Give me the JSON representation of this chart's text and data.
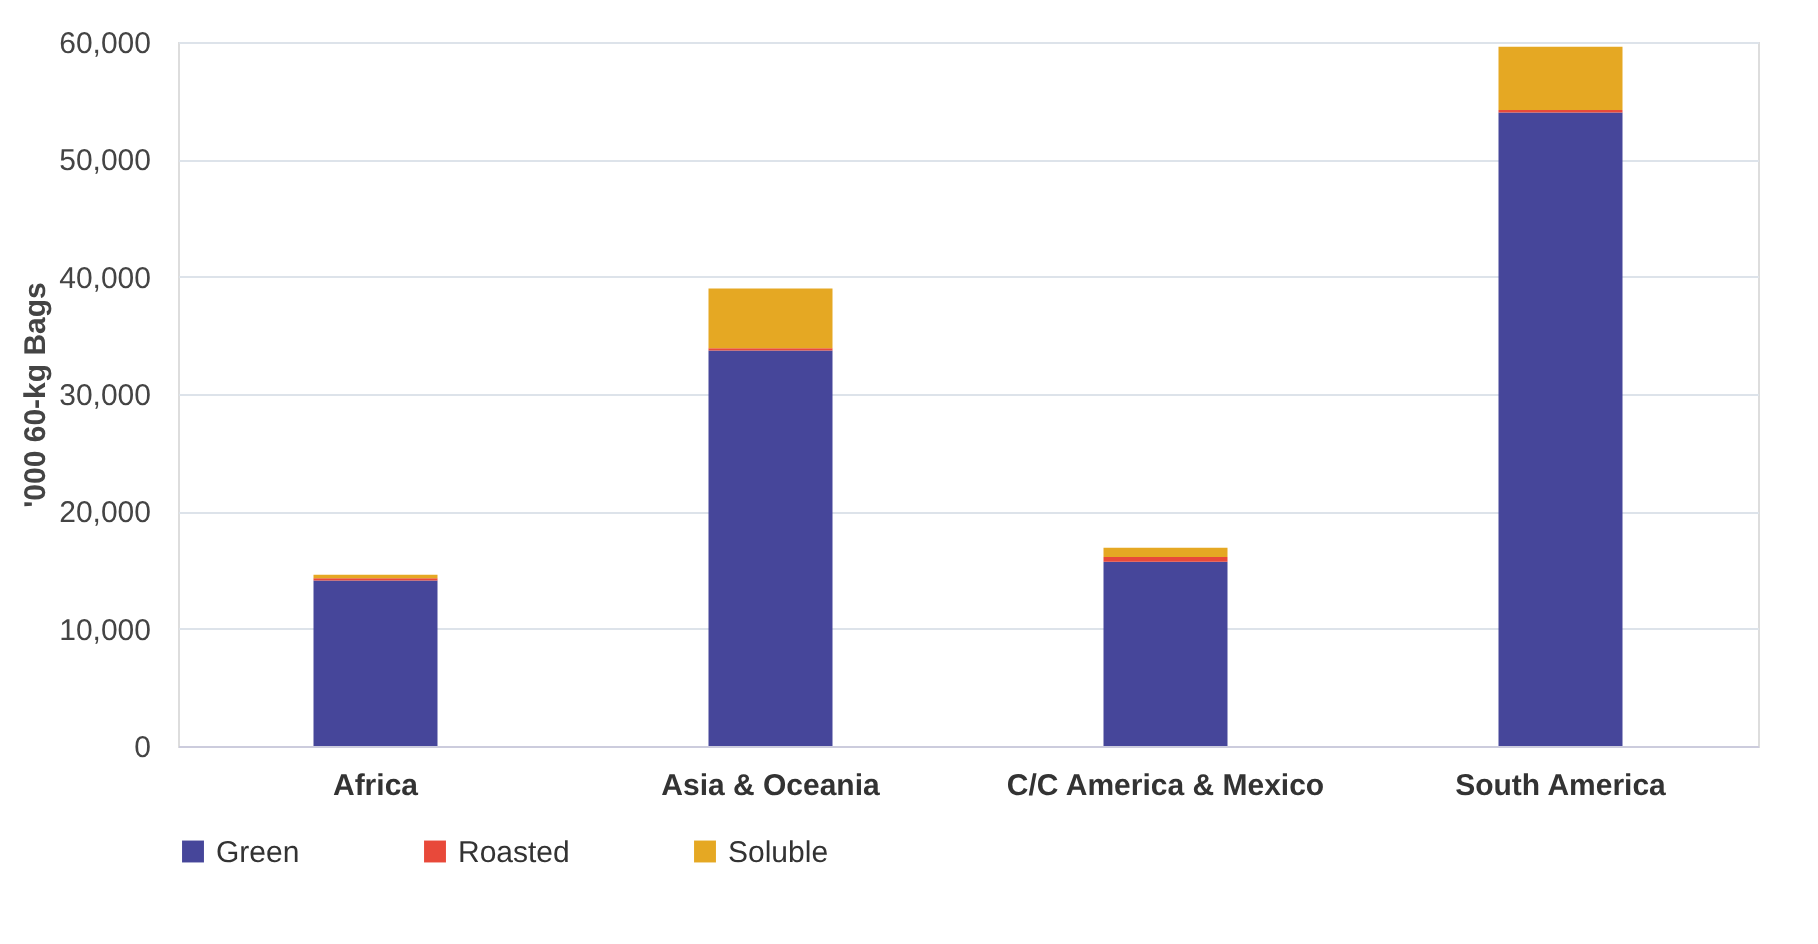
{
  "chart_data": {
    "type": "bar",
    "stacked": true,
    "ylabel": "'000 60-kg Bags",
    "categories": [
      "Africa",
      "Asia & Oceania",
      "C/C America & Mexico",
      "South America"
    ],
    "series": [
      {
        "name": "Green",
        "color": "#46469a",
        "values": [
          14100,
          33700,
          15700,
          54000
        ]
      },
      {
        "name": "Roasted",
        "color": "#e8493a",
        "values": [
          200,
          200,
          400,
          200
        ]
      },
      {
        "name": "Soluble",
        "color": "#e5a823",
        "values": [
          300,
          5100,
          800,
          5400
        ]
      }
    ],
    "ylim": [
      0,
      60000
    ],
    "yticks": [
      0,
      {
        "value": 10000,
        "label": "10,000"
      },
      {
        "value": 20000,
        "label": "20,000"
      },
      {
        "value": 30000,
        "label": "30,000"
      },
      {
        "value": 40000,
        "label": "40,000"
      },
      {
        "value": 50000,
        "label": "50,000"
      },
      {
        "value": 60000,
        "label": "60,000"
      }
    ],
    "grid": "y",
    "legend": "bottom"
  }
}
